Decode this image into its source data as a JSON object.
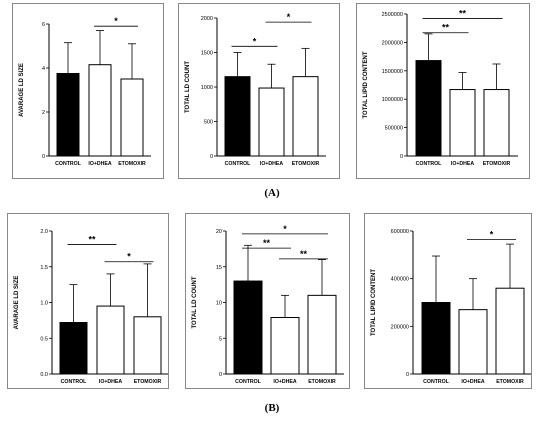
{
  "row_labels": [
    "(A)",
    "(B)"
  ],
  "colors": {
    "control_fill": "#000000",
    "treatment_fill": "#ffffff",
    "stroke": "#000000"
  },
  "chart_data": [
    {
      "type": "bar",
      "ylabel": "AVARAGE LD SIZE",
      "categories": [
        "CONTROL",
        "IO+DHEA",
        "ETOMOXIR"
      ],
      "values": [
        3.75,
        4.15,
        3.5
      ],
      "errors": [
        1.4,
        1.55,
        1.6
      ],
      "ylim": [
        0,
        6
      ],
      "yticks": [
        0,
        2,
        4,
        6
      ],
      "ytick_labels": [
        "0",
        "2",
        "4",
        "6"
      ],
      "significance": [
        {
          "from": 1,
          "to": 2,
          "label": "*",
          "y": 5.9
        }
      ]
    },
    {
      "type": "bar",
      "ylabel": "TOTAL LD COUNT",
      "categories": [
        "CONTROL",
        "IO+DHEA",
        "ETOMOXIR"
      ],
      "values": [
        1150,
        985,
        1150
      ],
      "errors": [
        350,
        345,
        410
      ],
      "ylim": [
        0,
        2000
      ],
      "yticks": [
        0,
        500,
        1000,
        1500,
        2000
      ],
      "ytick_labels": [
        "0",
        "500",
        "1000",
        "1500",
        "2000"
      ],
      "significance": [
        {
          "from": 0,
          "to": 1,
          "label": "*",
          "y": 1590
        },
        {
          "from": 1,
          "to": 2,
          "label": "*",
          "y": 1940
        }
      ]
    },
    {
      "type": "bar",
      "ylabel": "TOTAL LIPID CONTENT",
      "categories": [
        "CONTROL",
        "IO+DHEA",
        "ETOMOXIR"
      ],
      "values": [
        1680000,
        1170000,
        1170000
      ],
      "errors": [
        470000,
        300000,
        450000
      ],
      "ylim": [
        0,
        2500000
      ],
      "yticks": [
        0,
        500000,
        1000000,
        1500000,
        2000000,
        2500000
      ],
      "ytick_labels": [
        "0",
        "500000",
        "1000000",
        "1500000",
        "2000000",
        "2500000"
      ],
      "significance": [
        {
          "from": 0,
          "to": 2,
          "label": "**",
          "y": 2420000
        },
        {
          "from": 0,
          "to": 1,
          "label": "**",
          "y": 2170000
        }
      ]
    },
    {
      "type": "bar",
      "ylabel": "AVARAGE LD SIZE",
      "categories": [
        "CONTROL",
        "IO+DHEA",
        "ETOMOXIR"
      ],
      "values": [
        0.72,
        0.95,
        0.8
      ],
      "errors": [
        0.53,
        0.45,
        0.74
      ],
      "ylim": [
        0,
        2.0
      ],
      "yticks": [
        0,
        0.5,
        1.0,
        1.5,
        2.0
      ],
      "ytick_labels": [
        "0.0",
        "0.5",
        "1.0",
        "1.5",
        "2.0"
      ],
      "significance": [
        {
          "from": 0,
          "to": 1,
          "label": "**",
          "y": 1.81
        },
        {
          "from": 1,
          "to": 2,
          "label": "*",
          "y": 1.57
        }
      ]
    },
    {
      "type": "bar",
      "ylabel": "TOTAL LD COUNT",
      "categories": [
        "CONTROL",
        "IO+DHEA",
        "ETOMOXIR"
      ],
      "values": [
        13,
        7.9,
        11
      ],
      "errors": [
        5,
        3.1,
        5
      ],
      "ylim": [
        0,
        20
      ],
      "yticks": [
        0,
        5,
        10,
        15,
        20
      ],
      "ytick_labels": [
        "0",
        "5",
        "10",
        "15",
        "20"
      ],
      "significance": [
        {
          "from": 0,
          "to": 2,
          "label": "*",
          "y": 19.6
        },
        {
          "from": 0,
          "to": 1,
          "label": "**",
          "y": 17.6
        },
        {
          "from": 1,
          "to": 2,
          "label": "**",
          "y": 16.1
        }
      ]
    },
    {
      "type": "bar",
      "ylabel": "TOTAL LIPID CONTENT",
      "categories": [
        "CONTROL",
        "IO+DHEA",
        "ETOMOXIR"
      ],
      "values": [
        300000,
        270000,
        360000
      ],
      "errors": [
        195000,
        130000,
        185000
      ],
      "ylim": [
        0,
        600000
      ],
      "yticks": [
        0,
        200000,
        400000,
        600000
      ],
      "ytick_labels": [
        "0",
        "200000",
        "400000",
        "600000"
      ],
      "significance": [
        {
          "from": 1,
          "to": 2,
          "label": "*",
          "y": 565000
        }
      ]
    }
  ]
}
